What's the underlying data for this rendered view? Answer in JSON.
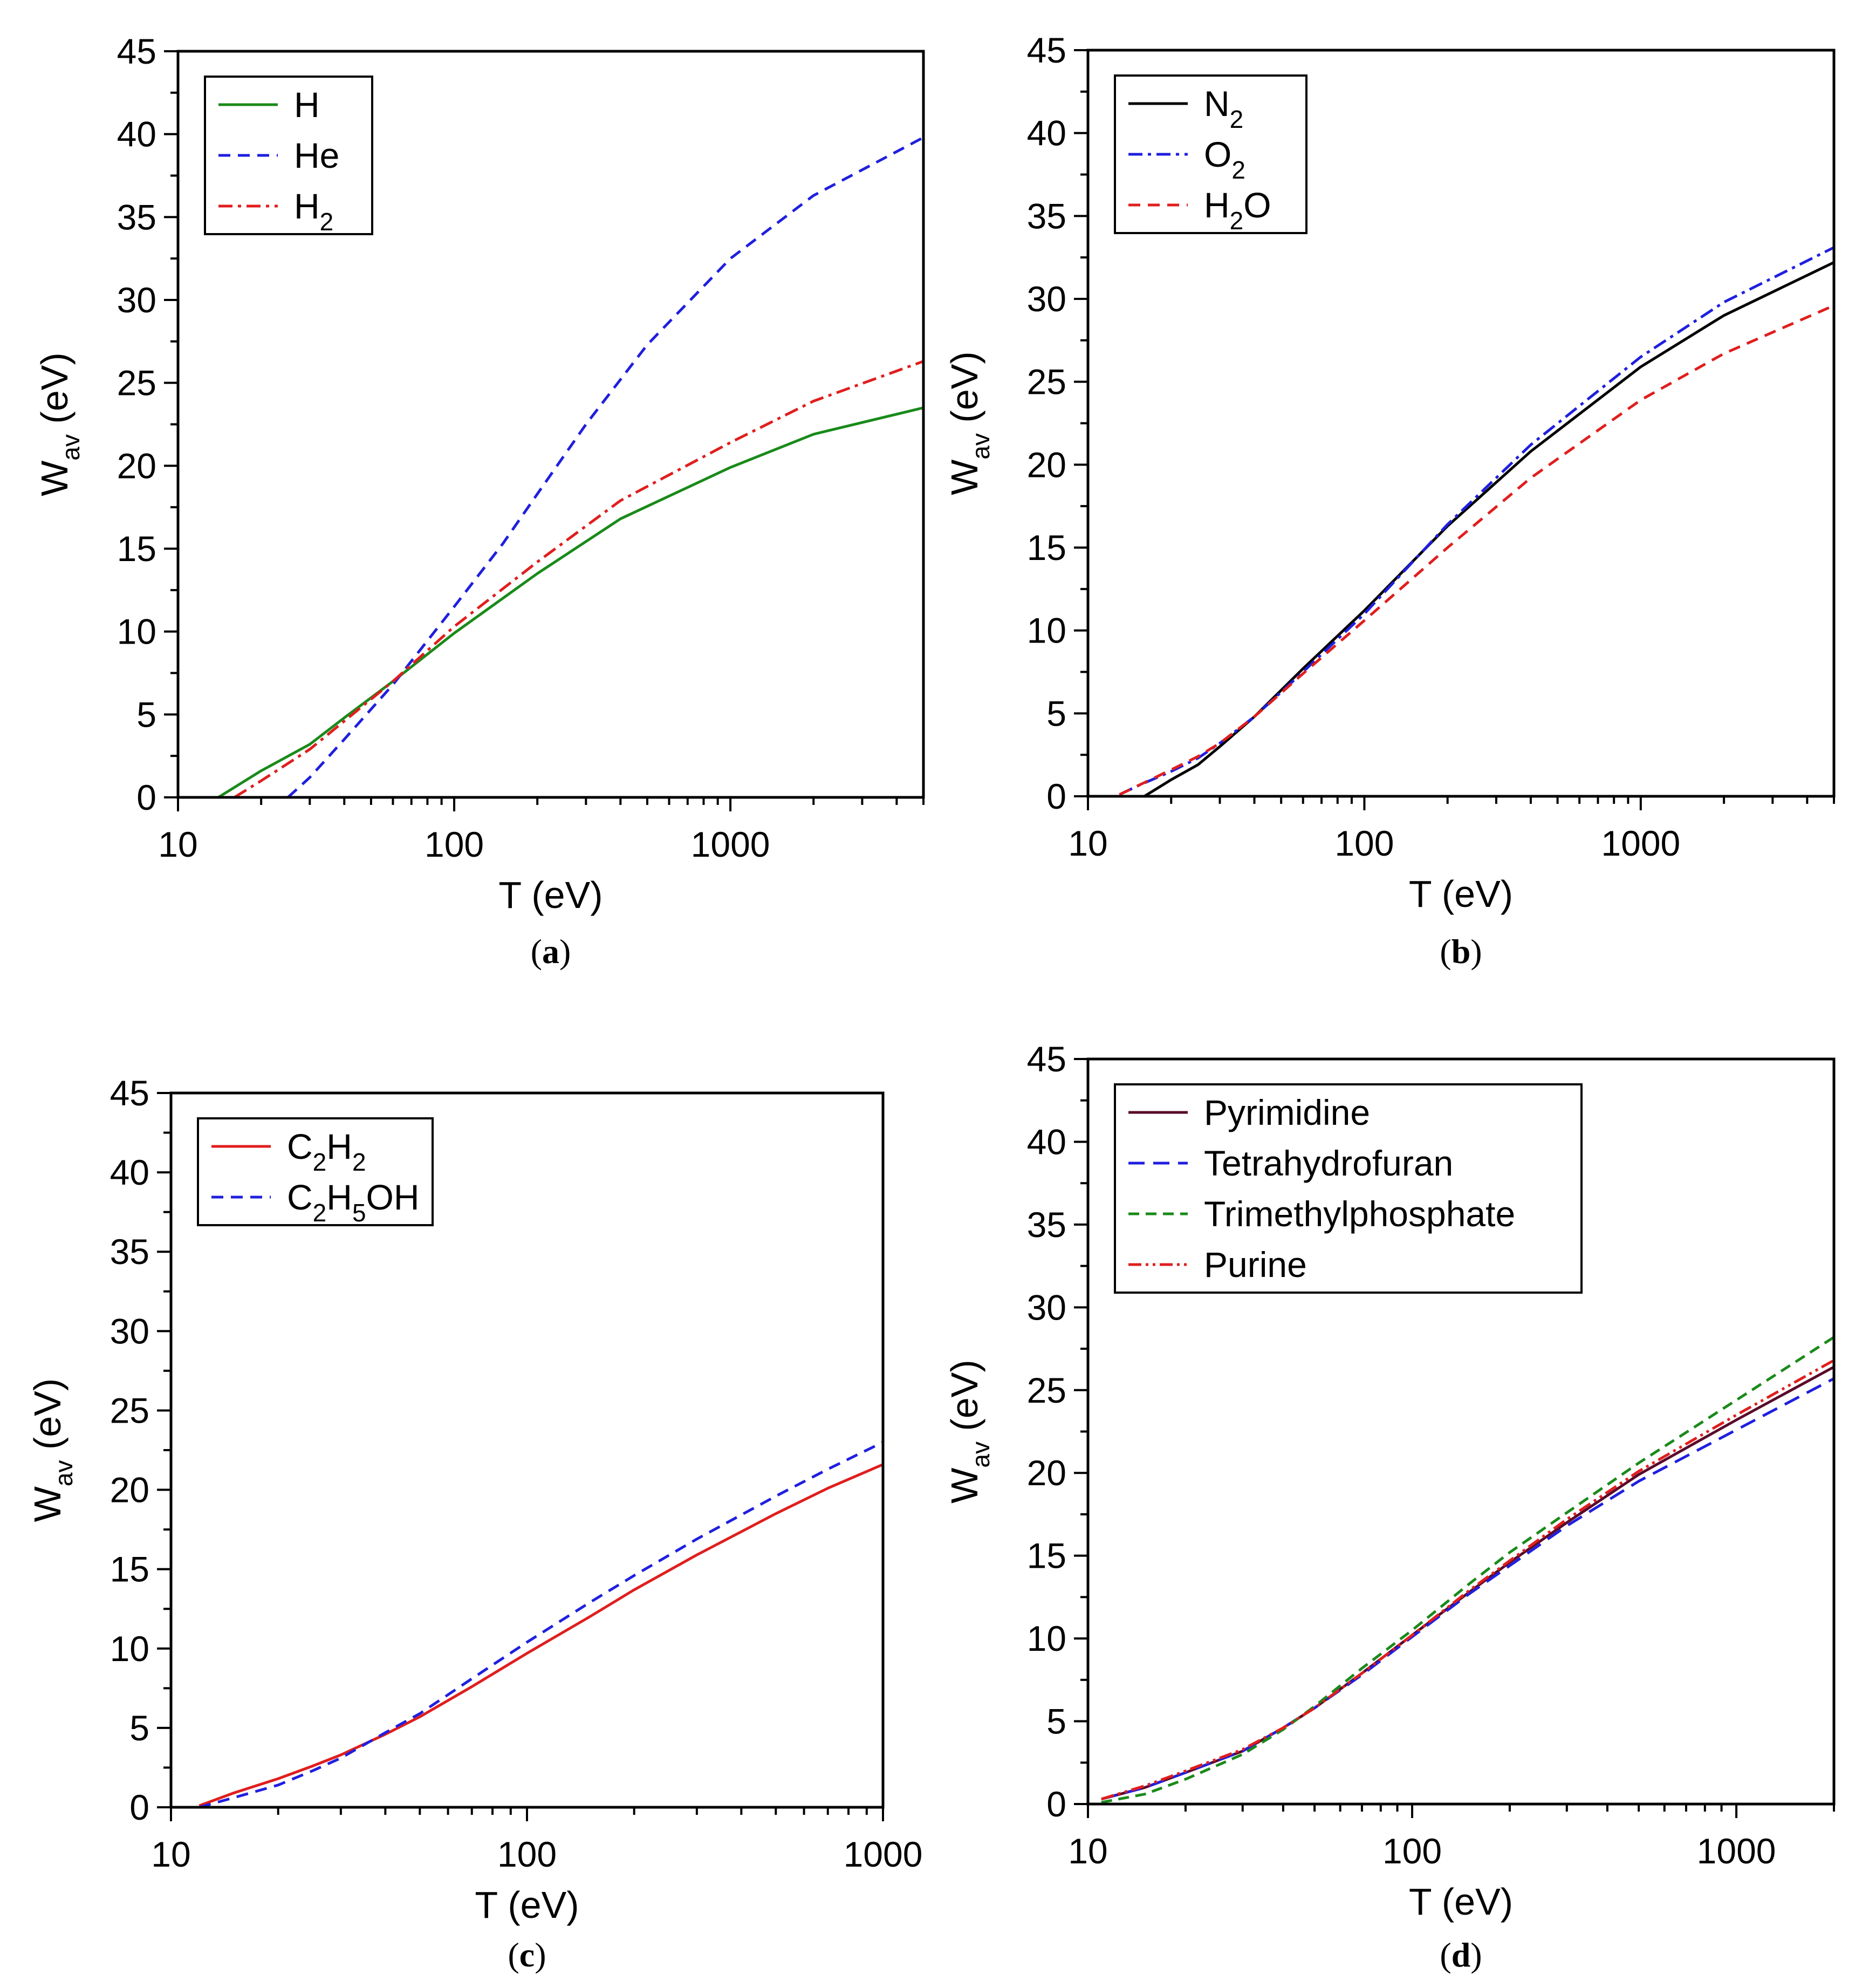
{
  "chart_data": [
    {
      "type": "line",
      "panel_label": "a",
      "xscale": "log",
      "xlim": [
        10,
        5000
      ],
      "ylim": [
        0,
        45
      ],
      "xticks": [
        10,
        100,
        1000
      ],
      "xtick_labels": [
        "10",
        "100",
        "1000"
      ],
      "yticks": [
        0,
        5,
        10,
        15,
        20,
        25,
        30,
        35,
        40,
        45
      ],
      "ytick_labels": [
        "0",
        "5",
        "10",
        "15",
        "20",
        "25",
        "30",
        "35",
        "40",
        "45"
      ],
      "xlabel": "T (eV)",
      "ylabel": "W",
      "ylabel_sub": "av",
      "ylabel_suffix": " (eV)",
      "legend_position": "top-left",
      "series": [
        {
          "name": "H",
          "legend_main": "H",
          "legend_parts": [
            [
              "H",
              ""
            ]
          ],
          "color": "#1a8a1a",
          "dash": "none",
          "x": [
            14,
            20,
            30,
            40,
            60,
            100,
            200,
            400,
            1000,
            2000,
            5000
          ],
          "y": [
            0,
            1.6,
            3.2,
            4.8,
            7.0,
            9.9,
            13.5,
            16.8,
            19.9,
            21.9,
            23.5
          ]
        },
        {
          "name": "He",
          "legend_main": "He",
          "legend_parts": [
            [
              "He",
              ""
            ]
          ],
          "color": "#1f1fdf",
          "dash": "22,14",
          "x": [
            25,
            30,
            40,
            60,
            100,
            150,
            200,
            300,
            500,
            1000,
            2000,
            5000
          ],
          "y": [
            0,
            1.2,
            3.5,
            6.8,
            11.5,
            15.3,
            18.3,
            22.5,
            27.3,
            32.5,
            36.3,
            39.8
          ]
        },
        {
          "name": "H2",
          "legend_main": "H",
          "legend_parts": [
            [
              "H",
              "2"
            ]
          ],
          "color": "#e01e1e",
          "dash": "26,10,6,10",
          "x": [
            16,
            20,
            30,
            40,
            60,
            100,
            200,
            400,
            1000,
            2000,
            5000
          ],
          "y": [
            0,
            1.0,
            2.9,
            4.6,
            7.0,
            10.3,
            14.2,
            17.9,
            21.4,
            23.9,
            26.3
          ]
        }
      ]
    },
    {
      "type": "line",
      "panel_label": "b",
      "xscale": "log",
      "xlim": [
        10,
        5000
      ],
      "ylim": [
        0,
        45
      ],
      "xticks": [
        10,
        100,
        1000
      ],
      "xtick_labels": [
        "10",
        "100",
        "1000"
      ],
      "yticks": [
        0,
        5,
        10,
        15,
        20,
        25,
        30,
        35,
        40,
        45
      ],
      "ytick_labels": [
        "0",
        "5",
        "10",
        "15",
        "20",
        "25",
        "30",
        "35",
        "40",
        "45"
      ],
      "xlabel": "T (eV)",
      "ylabel": "W",
      "ylabel_sub": "av",
      "ylabel_suffix": " (eV)",
      "legend_position": "top-left",
      "series": [
        {
          "name": "N2",
          "legend_main": "N",
          "legend_parts": [
            [
              "N",
              "2"
            ]
          ],
          "color": "#000000",
          "dash": "none",
          "x": [
            16,
            20,
            25,
            30,
            40,
            60,
            100,
            200,
            400,
            1000,
            2000,
            5000
          ],
          "y": [
            0,
            1.0,
            1.9,
            3.0,
            4.8,
            7.7,
            11.2,
            16.3,
            20.8,
            25.9,
            29.0,
            32.2
          ]
        },
        {
          "name": "O2",
          "legend_main": "O",
          "legend_parts": [
            [
              "O",
              "2"
            ]
          ],
          "color": "#1f1fdf",
          "dash": "26,10,6,10",
          "x": [
            13,
            15,
            20,
            25,
            30,
            40,
            60,
            100,
            200,
            400,
            1000,
            2000,
            5000
          ],
          "y": [
            0.1,
            0.6,
            1.5,
            2.3,
            3.2,
            4.8,
            7.5,
            11.0,
            16.4,
            21.2,
            26.5,
            29.8,
            33.1
          ]
        },
        {
          "name": "H2O",
          "legend_main": "H",
          "legend_parts": [
            [
              "H",
              "2"
            ],
            [
              "O",
              ""
            ]
          ],
          "color": "#e01e1e",
          "dash": "22,14",
          "x": [
            13,
            15,
            20,
            25,
            30,
            40,
            60,
            100,
            200,
            400,
            1000,
            2000,
            5000
          ],
          "y": [
            0.1,
            0.6,
            1.6,
            2.4,
            3.2,
            4.8,
            7.4,
            10.6,
            15.0,
            19.2,
            23.9,
            26.7,
            29.6
          ]
        }
      ]
    },
    {
      "type": "line",
      "panel_label": "c",
      "xscale": "log",
      "xlim": [
        10,
        1000
      ],
      "ylim": [
        0,
        45
      ],
      "xticks": [
        10,
        100,
        1000
      ],
      "xtick_labels": [
        "10",
        "100",
        "1000"
      ],
      "yticks": [
        0,
        5,
        10,
        15,
        20,
        25,
        30,
        35,
        40,
        45
      ],
      "ytick_labels": [
        "0",
        "5",
        "10",
        "15",
        "20",
        "25",
        "30",
        "35",
        "40",
        "45"
      ],
      "xlabel": "T (eV)",
      "ylabel": "W",
      "ylabel_sub": "av",
      "ylabel_suffix": " (eV)",
      "legend_position": "top-left",
      "series": [
        {
          "name": "C2H2",
          "legend_main": "C",
          "legend_parts": [
            [
              "C",
              "2"
            ],
            [
              "H",
              "2"
            ]
          ],
          "color": "#e01e1e",
          "dash": "none",
          "x": [
            12,
            15,
            20,
            25,
            30,
            40,
            50,
            70,
            100,
            150,
            200,
            300,
            500,
            700,
            1000
          ],
          "y": [
            0.1,
            0.9,
            1.8,
            2.6,
            3.3,
            4.6,
            5.7,
            7.6,
            9.7,
            12.0,
            13.7,
            15.9,
            18.5,
            20.1,
            21.6
          ]
        },
        {
          "name": "C2H5OH",
          "legend_main": "C",
          "legend_parts": [
            [
              "C",
              "2"
            ],
            [
              "H",
              "5"
            ],
            [
              "OH",
              ""
            ]
          ],
          "color": "#1f1fdf",
          "dash": "22,14",
          "x": [
            12,
            15,
            20,
            25,
            30,
            40,
            50,
            70,
            100,
            150,
            200,
            300,
            500,
            700,
            1000
          ],
          "y": [
            0.0,
            0.6,
            1.4,
            2.3,
            3.1,
            4.7,
            5.9,
            8.1,
            10.4,
            12.9,
            14.6,
            16.9,
            19.6,
            21.3,
            23.0
          ]
        }
      ]
    },
    {
      "type": "line",
      "panel_label": "d",
      "xscale": "log",
      "xlim": [
        10,
        2000
      ],
      "ylim": [
        0,
        45
      ],
      "xticks": [
        10,
        100,
        1000
      ],
      "xtick_labels": [
        "10",
        "100",
        "1000"
      ],
      "yticks": [
        0,
        5,
        10,
        15,
        20,
        25,
        30,
        35,
        40,
        45
      ],
      "ytick_labels": [
        "0",
        "5",
        "10",
        "15",
        "20",
        "25",
        "30",
        "35",
        "40",
        "45"
      ],
      "xlabel": "T (eV)",
      "ylabel": "W",
      "ylabel_sub": "av",
      "ylabel_suffix": " (eV)",
      "legend_position": "top-left",
      "series": [
        {
          "name": "Pyrimidine",
          "legend_main": "Pyrimidine",
          "legend_parts": [
            [
              "Pyrimidine",
              ""
            ]
          ],
          "color": "#5a0a2a",
          "dash": "none",
          "x": [
            11,
            15,
            20,
            30,
            40,
            50,
            70,
            100,
            150,
            200,
            300,
            500,
            1000,
            2000
          ],
          "y": [
            0.3,
            1.0,
            1.9,
            3.2,
            4.6,
            5.8,
            7.9,
            10.2,
            12.8,
            14.6,
            17.0,
            19.9,
            23.2,
            26.4
          ]
        },
        {
          "name": "Tetrahydrofuran",
          "legend_main": "Tetrahydrofuran",
          "legend_parts": [
            [
              "Tetrahydrofuran",
              ""
            ]
          ],
          "color": "#1f1fdf",
          "dash": "30,16",
          "x": [
            11,
            15,
            20,
            30,
            40,
            50,
            70,
            100,
            150,
            200,
            300,
            500,
            1000,
            2000
          ],
          "y": [
            0.3,
            1.0,
            1.9,
            3.2,
            4.6,
            5.8,
            7.8,
            10.1,
            12.7,
            14.4,
            16.8,
            19.5,
            22.6,
            25.7
          ]
        },
        {
          "name": "Trimethylphosphate",
          "legend_main": "Trimethylphosphate",
          "legend_parts": [
            [
              "Trimethylphosphate",
              ""
            ]
          ],
          "color": "#1a8a1a",
          "dash": "20,12",
          "x": [
            11,
            15,
            20,
            30,
            40,
            50,
            70,
            100,
            150,
            200,
            300,
            500,
            1000,
            2000
          ],
          "y": [
            0.1,
            0.6,
            1.5,
            3.0,
            4.5,
            5.9,
            8.2,
            10.5,
            13.3,
            15.2,
            17.6,
            20.6,
            24.4,
            28.2
          ]
        },
        {
          "name": "Purine",
          "legend_main": "Purine",
          "legend_parts": [
            [
              "Purine",
              ""
            ]
          ],
          "color": "#e01e1e",
          "dash": "24,8,5,8,5,8",
          "x": [
            11,
            15,
            20,
            30,
            40,
            50,
            70,
            100,
            150,
            200,
            300,
            500,
            1000,
            2000
          ],
          "y": [
            0.3,
            1.1,
            2.0,
            3.3,
            4.6,
            5.8,
            7.9,
            10.2,
            12.9,
            14.7,
            17.2,
            20.1,
            23.5,
            26.8
          ]
        }
      ]
    }
  ]
}
